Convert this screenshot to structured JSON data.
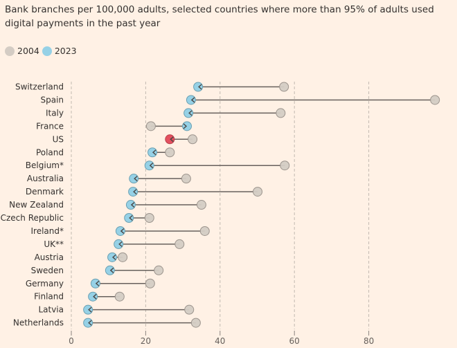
{
  "chart_data": {
    "type": "dumbbell",
    "title": "Bank branches per 100,000 adults, selected countries where more than 95% of adults used digital payments in the past year",
    "xlabel": "",
    "ylabel": "",
    "xlim": [
      0,
      100
    ],
    "xticks": [
      0,
      20,
      40,
      60,
      80
    ],
    "grid": true,
    "legend_position": "top-left",
    "legend": [
      {
        "label": "2004",
        "color": "#d4ccc4"
      },
      {
        "label": "2023",
        "color": "#96d1e6"
      }
    ],
    "highlight": {
      "category": "US",
      "color": "#e4505f"
    },
    "categories": [
      "Switzerland",
      "Spain",
      "Italy",
      "France",
      "US",
      "Poland",
      "Belgium*",
      "Australia",
      "Denmark",
      "New Zealand",
      "Czech Republic",
      "Ireland*",
      "UK**",
      "Austria",
      "Sweden",
      "Germany",
      "Finland",
      "Latvia",
      "Netherlands"
    ],
    "series": [
      {
        "name": "2004",
        "values": [
          57.2,
          97.8,
          56.3,
          21.4,
          32.6,
          26.5,
          57.4,
          30.9,
          50.1,
          35.0,
          21.0,
          35.9,
          29.1,
          13.8,
          23.5,
          21.2,
          13.0,
          31.7,
          33.5
        ]
      },
      {
        "name": "2023",
        "values": [
          34.1,
          32.2,
          31.5,
          31.1,
          26.5,
          21.8,
          21.0,
          16.8,
          16.6,
          16.0,
          15.5,
          13.2,
          12.7,
          11.0,
          10.4,
          6.5,
          5.8,
          4.5,
          4.5
        ]
      }
    ]
  },
  "colors": {
    "y2004": "#d4ccc4",
    "y2023": "#96d1e6",
    "highlight": "#e4505f",
    "line": "#66605c",
    "grid": "#c2b9b0"
  }
}
